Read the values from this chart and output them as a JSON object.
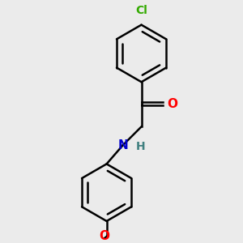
{
  "background_color": "#ebebeb",
  "line_color": "#000000",
  "cl_color": "#33aa00",
  "o_color": "#ff0000",
  "n_color": "#0000cc",
  "h_color": "#408080",
  "line_width": 1.8,
  "dbo": 0.022,
  "figsize": [
    3.0,
    3.0
  ],
  "dpi": 100,
  "xlim": [
    0.05,
    0.75
  ],
  "ylim": [
    0.02,
    0.98
  ]
}
